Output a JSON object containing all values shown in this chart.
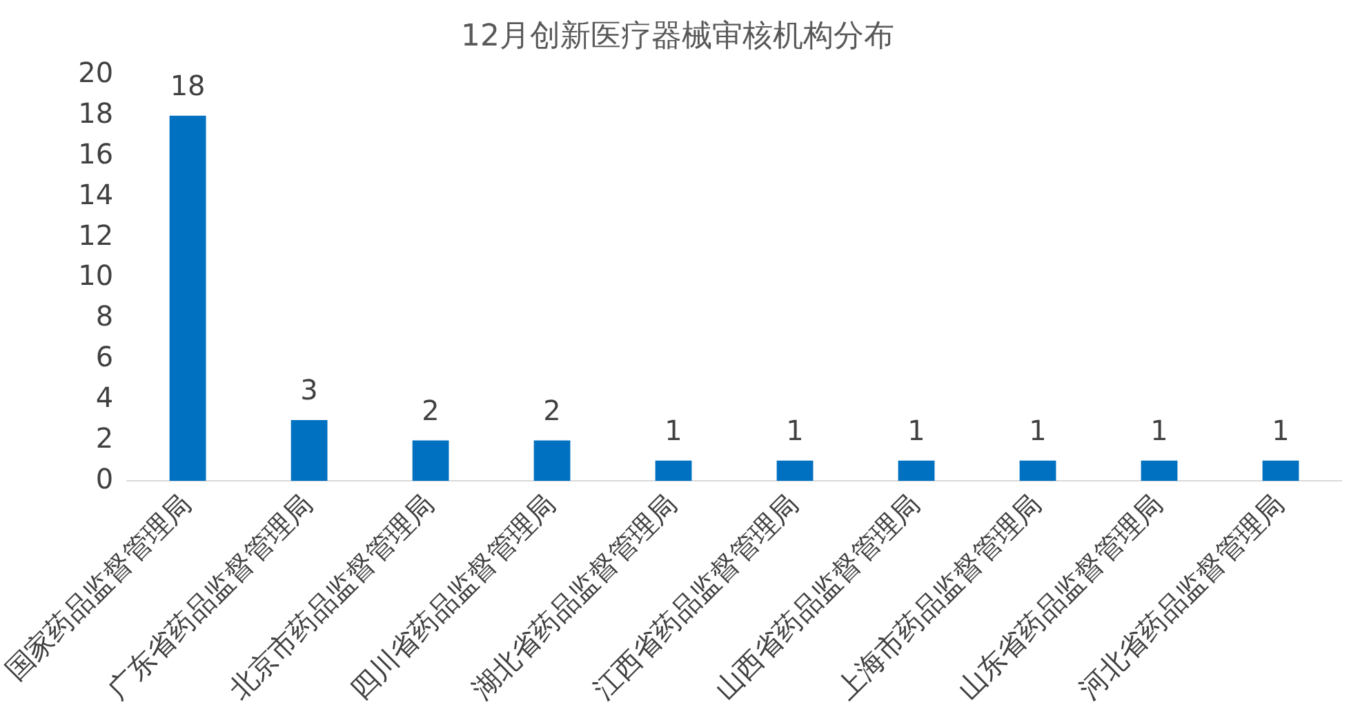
{
  "chart_data": {
    "type": "bar",
    "title": "12月创新医疗器械审核机构分布",
    "categories": [
      "国家药品监督管理局",
      "广东省药品监督管理局",
      "北京市药品监督管理局",
      "四川省药品监督管理局",
      "湖北省药品监督管理局",
      "江西省药品监督管理局",
      "山西省药品监督管理局",
      "上海市药品监督管理局",
      "山东省药品监督管理局",
      "河北省药品监督管理局"
    ],
    "values": [
      18,
      3,
      2,
      2,
      1,
      1,
      1,
      1,
      1,
      1
    ],
    "color": "#0070c0",
    "ylim": [
      0,
      20
    ],
    "yticks": [
      0,
      2,
      4,
      6,
      8,
      10,
      12,
      14,
      16,
      18,
      20
    ],
    "grid": false,
    "legend": false,
    "data_labels": true
  }
}
